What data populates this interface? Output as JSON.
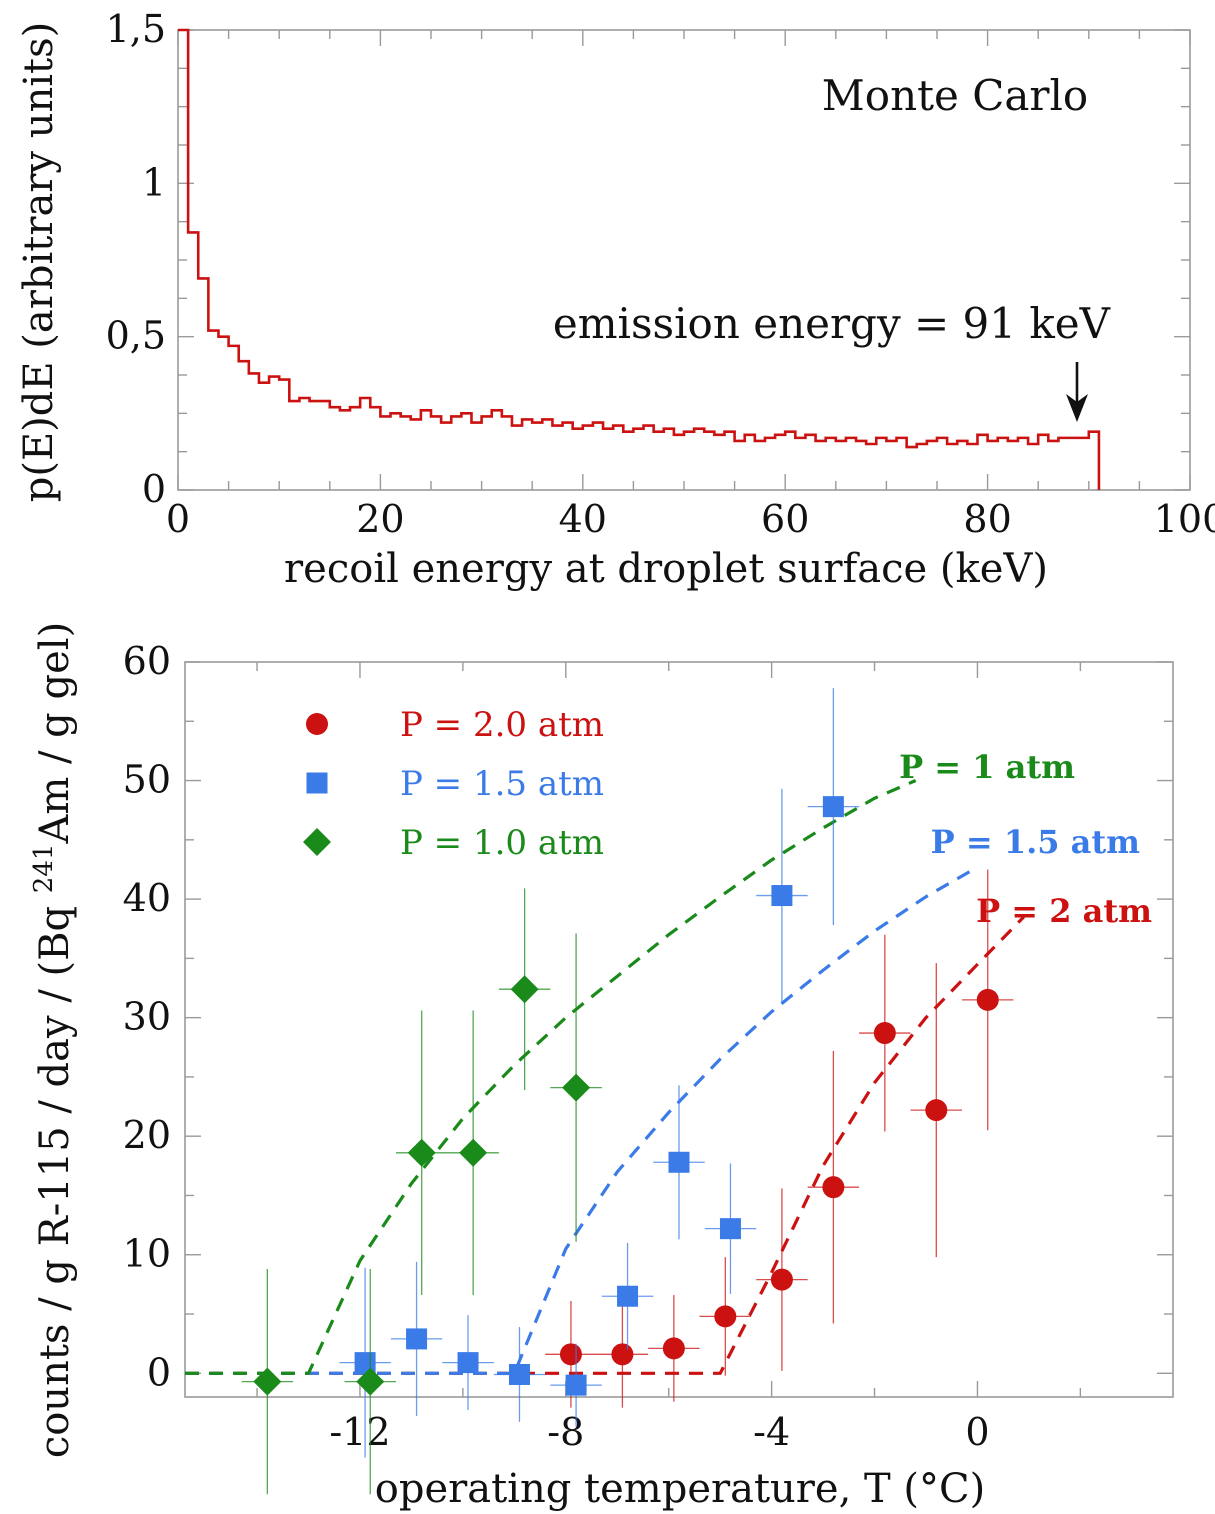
{
  "chart_data": [
    {
      "type": "line",
      "subtype": "step-histogram",
      "title": "",
      "annotations": {
        "top_right": "Monte Carlo",
        "emission": "emission energy = 91 keV"
      },
      "xlabel": "recoil energy at droplet surface (keV)",
      "ylabel": "p(E)dE (arbitrary units)",
      "xlim": [
        0,
        100
      ],
      "ylim": [
        0,
        1.5
      ],
      "x_tick_labels": [
        "0",
        "20",
        "40",
        "60",
        "80",
        "100"
      ],
      "x_ticks": [
        0,
        20,
        40,
        60,
        80,
        100
      ],
      "y_tick_labels": [
        "0",
        "0,5",
        "1",
        "1,5"
      ],
      "y_ticks": [
        0,
        0.5,
        1,
        1.5
      ],
      "color": "#cc1111",
      "cutoff": 91,
      "series": [
        {
          "bin_width": 1,
          "values": [
            1.55,
            0.84,
            0.69,
            0.52,
            0.5,
            0.47,
            0.42,
            0.38,
            0.35,
            0.37,
            0.36,
            0.29,
            0.3,
            0.29,
            0.29,
            0.27,
            0.26,
            0.27,
            0.3,
            0.27,
            0.24,
            0.25,
            0.24,
            0.23,
            0.26,
            0.24,
            0.22,
            0.24,
            0.25,
            0.22,
            0.24,
            0.26,
            0.24,
            0.21,
            0.23,
            0.22,
            0.23,
            0.21,
            0.22,
            0.2,
            0.21,
            0.22,
            0.2,
            0.21,
            0.19,
            0.2,
            0.21,
            0.19,
            0.2,
            0.18,
            0.19,
            0.2,
            0.19,
            0.18,
            0.19,
            0.16,
            0.18,
            0.16,
            0.17,
            0.18,
            0.19,
            0.17,
            0.18,
            0.16,
            0.17,
            0.16,
            0.17,
            0.16,
            0.15,
            0.17,
            0.16,
            0.17,
            0.14,
            0.15,
            0.16,
            0.17,
            0.15,
            0.16,
            0.15,
            0.18,
            0.16,
            0.17,
            0.16,
            0.17,
            0.15,
            0.18,
            0.16,
            0.17,
            0.17,
            0.17,
            0.19
          ]
        }
      ]
    },
    {
      "type": "scatter",
      "title": "",
      "xlabel": "operating temperature, T (°C)",
      "ylabel": "counts / g R-115 / day / (Bq ²⁴¹Am / g gel)",
      "ylabel_parts": [
        "counts / g R-115 / day / (Bq ",
        "241",
        "Am / g gel)"
      ],
      "xlim": [
        -15.4,
        3.8
      ],
      "ylim": [
        -2,
        60
      ],
      "x_tick_labels": [
        "-12",
        "-8",
        "-4",
        "0"
      ],
      "x_ticks": [
        -12,
        -8,
        -4,
        0
      ],
      "y_tick_labels": [
        "0",
        "10",
        "20",
        "30",
        "40",
        "50",
        "60"
      ],
      "y_ticks": [
        0,
        10,
        20,
        30,
        40,
        50,
        60
      ],
      "legend_position": "top-left",
      "series": [
        {
          "name": "P = 2.0 atm",
          "marker": "circle",
          "color": "#cc1111",
          "points": [
            {
              "x": -7.9,
              "y": 1.6,
              "xerr": 0.5,
              "yerr": 4.5
            },
            {
              "x": -6.9,
              "y": 1.6,
              "xerr": 0.5,
              "yerr": 4.5
            },
            {
              "x": -5.9,
              "y": 2.1,
              "xerr": 0.5,
              "yerr": 4.5
            },
            {
              "x": -4.9,
              "y": 4.8,
              "xerr": 0.5,
              "yerr": 5.0
            },
            {
              "x": -3.8,
              "y": 7.9,
              "xerr": 0.5,
              "yerr": 7.7
            },
            {
              "x": -2.8,
              "y": 15.7,
              "xerr": 0.5,
              "yerr": 11.5
            },
            {
              "x": -1.8,
              "y": 28.7,
              "xerr": 0.5,
              "yerr": 8.3
            },
            {
              "x": -0.8,
              "y": 22.2,
              "xerr": 0.5,
              "yerr": 12.4
            },
            {
              "x": 0.2,
              "y": 31.5,
              "xerr": 0.5,
              "yerr": 11.0
            }
          ]
        },
        {
          "name": "P = 1.5 atm",
          "marker": "square",
          "color": "#3a7be8",
          "points": [
            {
              "x": -11.9,
              "y": 0.9,
              "xerr": 0.5,
              "yerr": 8.0
            },
            {
              "x": -10.9,
              "y": 2.9,
              "xerr": 0.5,
              "yerr": 6.5
            },
            {
              "x": -9.9,
              "y": 0.9,
              "xerr": 0.5,
              "yerr": 4.0
            },
            {
              "x": -8.9,
              "y": -0.1,
              "xerr": 0.5,
              "yerr": 4.0
            },
            {
              "x": -7.8,
              "y": -1.0,
              "xerr": 0.5,
              "yerr": 3.5
            },
            {
              "x": -6.8,
              "y": 6.5,
              "xerr": 0.5,
              "yerr": 4.5
            },
            {
              "x": -5.8,
              "y": 17.8,
              "xerr": 0.5,
              "yerr": 6.5
            },
            {
              "x": -4.8,
              "y": 12.2,
              "xerr": 0.5,
              "yerr": 5.5
            },
            {
              "x": -3.8,
              "y": 40.3,
              "xerr": 0.5,
              "yerr": 9.0
            },
            {
              "x": -2.8,
              "y": 47.8,
              "xerr": 0.5,
              "yerr": 10.0
            }
          ]
        },
        {
          "name": "P = 1.0 atm",
          "marker": "diamond",
          "color": "#1a8a1a",
          "points": [
            {
              "x": -13.8,
              "y": -0.7,
              "xerr": 0.5,
              "yerr": 9.5
            },
            {
              "x": -11.8,
              "y": -0.7,
              "xerr": 0.5,
              "yerr": 9.5
            },
            {
              "x": -10.8,
              "y": 18.6,
              "xerr": 0.5,
              "yerr": 12.0
            },
            {
              "x": -9.8,
              "y": 18.6,
              "xerr": 0.5,
              "yerr": 12.0
            },
            {
              "x": -8.8,
              "y": 32.4,
              "xerr": 0.5,
              "yerr": 8.5
            },
            {
              "x": -7.8,
              "y": 24.1,
              "xerr": 0.5,
              "yerr": 13.0
            }
          ]
        }
      ],
      "fit_curves": [
        {
          "label": "P = 2 atm",
          "color": "#cc1111",
          "x": [
            -15.4,
            -5.0,
            -4.0,
            -3.0,
            -2.0,
            -1.0,
            0.0,
            0.9
          ],
          "y": [
            0,
            0,
            8.5,
            17.5,
            24.5,
            30.0,
            34.5,
            38.5
          ]
        },
        {
          "label": "P = 1.5 atm",
          "color": "#3a7be8",
          "x": [
            -15.4,
            -9.0,
            -8.0,
            -7.0,
            -6.0,
            -5.0,
            -4.0,
            -3.0,
            -2.0,
            -1.0,
            0.0
          ],
          "y": [
            0,
            0,
            10.5,
            17.0,
            22.0,
            26.5,
            30.5,
            34.0,
            37.3,
            40.2,
            42.7
          ]
        },
        {
          "label": "P = 1 atm",
          "color": "#1a8a1a",
          "x": [
            -15.4,
            -13.0,
            -12.0,
            -11.0,
            -10.0,
            -9.0,
            -8.0,
            -7.0,
            -6.0,
            -5.0,
            -4.0,
            -3.0,
            -2.0,
            -1.2
          ],
          "y": [
            0,
            0,
            9.5,
            16.0,
            21.5,
            26.0,
            30.0,
            33.5,
            37.0,
            40.2,
            43.3,
            46.0,
            48.5,
            50.0
          ]
        }
      ]
    }
  ]
}
